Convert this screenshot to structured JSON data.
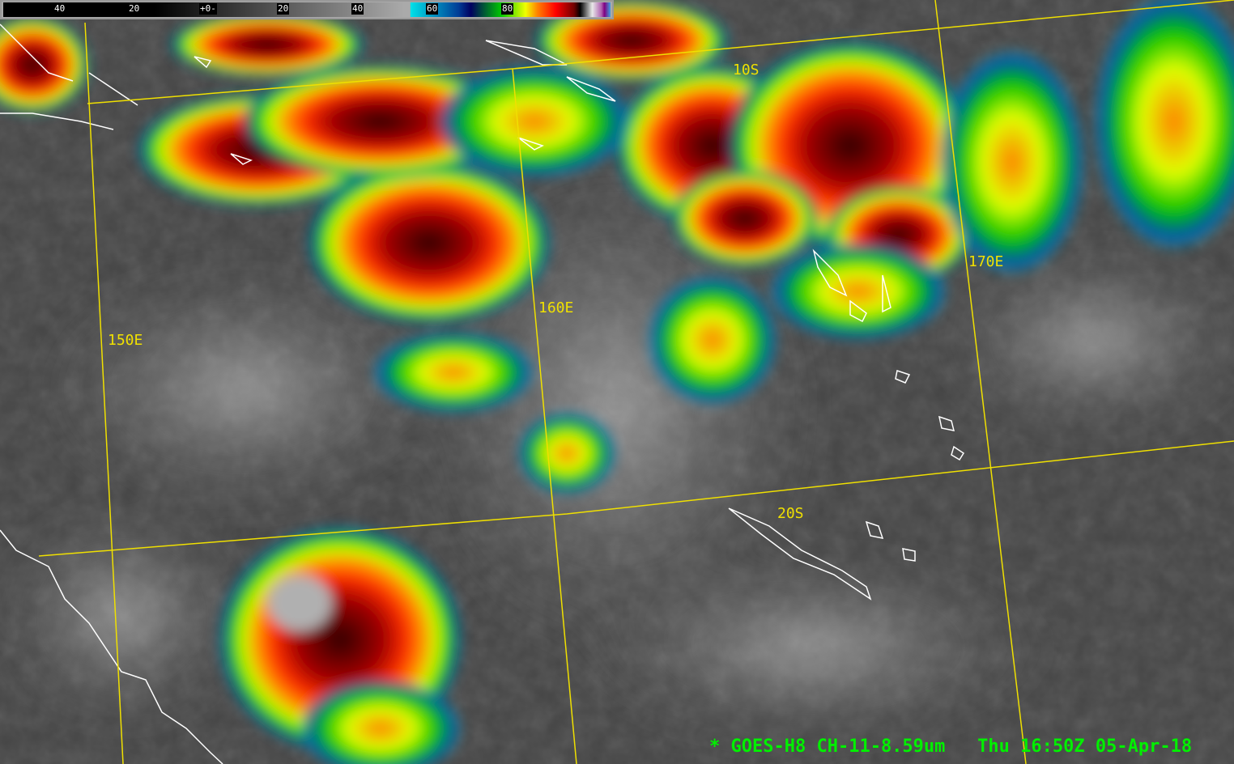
{
  "colorbar": {
    "ticks": [
      "40",
      "20",
      "+0-",
      "20",
      "40",
      "60",
      "80"
    ]
  },
  "grid_labels": {
    "lon_150": "150E",
    "lon_160": "160E",
    "lon_170": "170E",
    "lat_10": "10S",
    "lat_20": "20S"
  },
  "caption": {
    "marker": "*",
    "satellite": "GOES-H8",
    "channel": "CH-11-8.59um",
    "datetime": "Thu 16:50Z 05-Apr-18"
  },
  "colors": {
    "grid": "#f0e000",
    "caption": "#00f000",
    "coastline": "#ffffff"
  }
}
